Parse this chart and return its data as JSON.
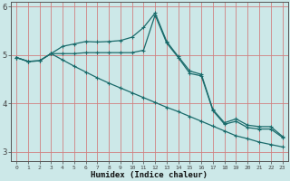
{
  "xlabel": "Humidex (Indice chaleur)",
  "bg_color": "#cce8e8",
  "line_color": "#1a6b6b",
  "grid_color": "#d08080",
  "x": [
    0,
    1,
    2,
    3,
    4,
    5,
    6,
    7,
    8,
    9,
    10,
    11,
    12,
    13,
    14,
    15,
    16,
    17,
    18,
    19,
    20,
    21,
    22,
    23
  ],
  "line1": [
    4.95,
    4.87,
    4.88,
    5.03,
    5.18,
    5.23,
    5.28,
    5.27,
    5.28,
    5.3,
    5.37,
    5.57,
    5.87,
    5.28,
    4.97,
    4.67,
    4.6,
    3.87,
    3.6,
    3.68,
    3.55,
    3.52,
    3.52,
    3.32
  ],
  "line2": [
    4.95,
    4.87,
    4.88,
    5.03,
    5.03,
    5.03,
    5.05,
    5.05,
    5.05,
    5.05,
    5.05,
    5.1,
    5.83,
    5.25,
    4.95,
    4.62,
    4.57,
    3.85,
    3.57,
    3.63,
    3.5,
    3.47,
    3.47,
    3.3
  ],
  "line3": [
    4.95,
    4.87,
    4.88,
    5.03,
    4.9,
    4.77,
    4.65,
    4.53,
    4.42,
    4.32,
    4.22,
    4.12,
    4.02,
    3.92,
    3.83,
    3.73,
    3.63,
    3.53,
    3.43,
    3.33,
    3.27,
    3.2,
    3.15,
    3.1
  ],
  "ylim": [
    2.8,
    6.1
  ],
  "xlim": [
    -0.5,
    23.5
  ],
  "yticks": [
    3,
    4,
    5,
    6
  ],
  "xticks": [
    0,
    1,
    2,
    3,
    4,
    5,
    6,
    7,
    8,
    9,
    10,
    11,
    12,
    13,
    14,
    15,
    16,
    17,
    18,
    19,
    20,
    21,
    22,
    23
  ]
}
